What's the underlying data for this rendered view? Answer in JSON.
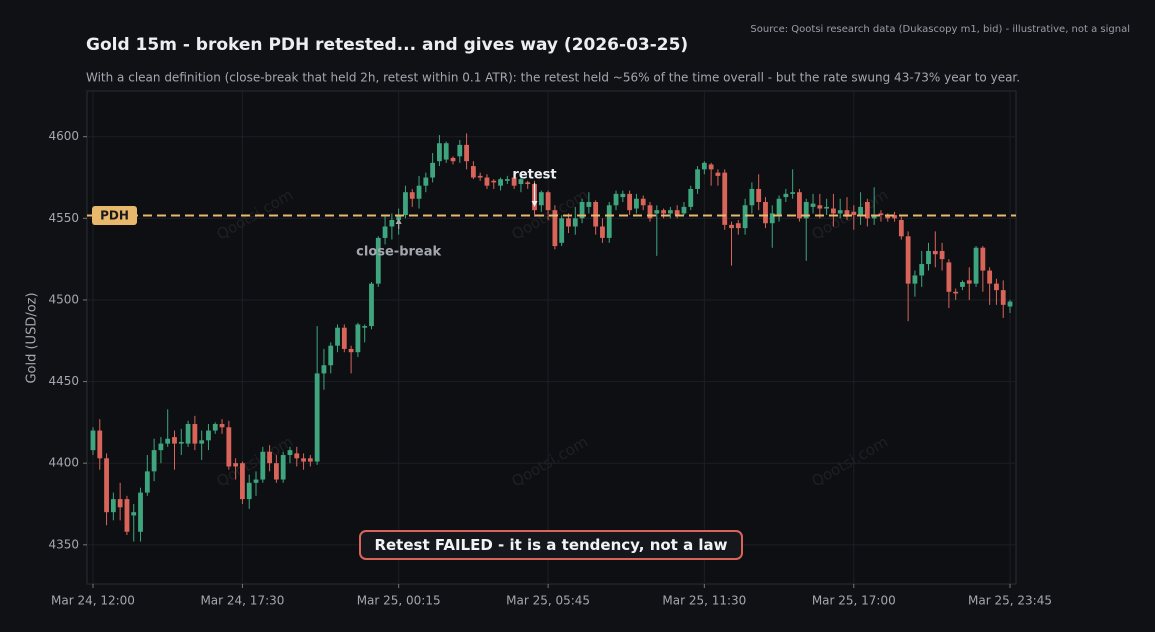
{
  "chart_data": {
    "type": "candlestick",
    "title": "Gold 15m - broken PDH retested... and gives way (2026-03-25)",
    "subtitle": "With a clean definition (close-break that held 2h, retest within 0.1 ATR): the retest held ~56% of the time overall - but the rate swung 43-73% year to year.",
    "source": "Source: Qootsi research data (Dukascopy m1, bid) - illustrative, not a signal",
    "ylabel": "Gold (USD/oz)",
    "watermark": "Qootsi.com",
    "annotations": [
      "close-break",
      "retest"
    ],
    "callout": "Retest FAILED - it is a tendency, not a law",
    "reference_line": {
      "value": 4551.7,
      "label": "PDH",
      "color": "#e8b86d"
    },
    "up_color": "#3fa57f",
    "down_color": "#d9645a",
    "grid": true,
    "ylim": [
      4326,
      4628
    ],
    "yticks": [
      4350,
      4400,
      4450,
      4500,
      4550,
      4600
    ],
    "xlim": [
      -0.88,
      135.88
    ],
    "categories": [
      "Mar 24, 12:00",
      null,
      null,
      null,
      null,
      null,
      null,
      null,
      null,
      null,
      null,
      null,
      null,
      null,
      null,
      null,
      null,
      null,
      null,
      null,
      null,
      null,
      "Mar 24, 17:30",
      null,
      null,
      null,
      null,
      null,
      null,
      null,
      null,
      null,
      null,
      null,
      null,
      null,
      null,
      null,
      null,
      null,
      null,
      null,
      null,
      null,
      null,
      "Mar 25, 00:15",
      null,
      null,
      null,
      null,
      null,
      null,
      null,
      null,
      null,
      null,
      null,
      null,
      null,
      null,
      null,
      null,
      null,
      null,
      null,
      null,
      null,
      "Mar 25, 05:45",
      null,
      null,
      null,
      null,
      null,
      null,
      null,
      null,
      null,
      null,
      null,
      null,
      null,
      null,
      null,
      null,
      null,
      null,
      null,
      null,
      null,
      null,
      "Mar 25, 11:30",
      null,
      null,
      null,
      null,
      null,
      null,
      null,
      null,
      null,
      null,
      null,
      null,
      null,
      null,
      null,
      null,
      null,
      null,
      null,
      null,
      null,
      "Mar 25, 17:00",
      null,
      null,
      null,
      null,
      null,
      null,
      null,
      null,
      null,
      null,
      null,
      null,
      null,
      null,
      null,
      null,
      null,
      null,
      null,
      null,
      null,
      null,
      "Mar 25, 23:45"
    ],
    "open": [
      4408,
      4420,
      4403,
      4370,
      4378,
      4378,
      4368,
      4358,
      4382,
      4395,
      4408,
      4412,
      4416,
      4412,
      4412,
      4424,
      4412,
      4414,
      4420,
      4424,
      4422,
      4400,
      4400,
      4378,
      4388,
      4390,
      4407,
      4400,
      4390,
      4405,
      4406,
      4403,
      4403,
      4401,
      4455,
      4460,
      4472,
      4483,
      4470,
      4468,
      4483,
      4484,
      4510,
      4538,
      4545,
      4549,
      4552,
      4566,
      4562,
      4570,
      4575,
      4585,
      4586,
      4587,
      4588,
      4595,
      4582,
      4576,
      4575,
      4573,
      4570,
      4573,
      4575,
      4571,
      4572,
      4571,
      4558,
      4566,
      4555,
      4535,
      4550,
      4545,
      4550,
      4557,
      4560,
      4545,
      4538,
      4558,
      4563,
      4565,
      4556,
      4562,
      4558,
      4553,
      4555,
      4553,
      4555,
      4553,
      4557,
      4568,
      4580,
      4583,
      4578,
      4578,
      4546,
      4547,
      4544,
      4558,
      4568,
      4560,
      4547,
      4552,
      4563,
      4565,
      4566,
      4550,
      4557,
      4558,
      4556,
      4556,
      4553,
      4555,
      4554,
      4552,
      4560,
      4550,
      4553,
      4552,
      4552,
      4549,
      4539,
      4510,
      4515,
      4522,
      4530,
      4530,
      4523,
      4505,
      4508,
      4512,
      4510,
      4532,
      4518,
      4510,
      4506,
      4496
    ],
    "high": [
      4422,
      4427,
      4406,
      4382,
      4388,
      4380,
      4375,
      4385,
      4405,
      4415,
      4416,
      4433,
      4420,
      4421,
      4426,
      4429,
      4420,
      4424,
      4425,
      4427,
      4426,
      4403,
      4401,
      4393,
      4395,
      4410,
      4411,
      4405,
      4407,
      4410,
      4410,
      4406,
      4405,
      4484,
      4470,
      4474,
      4485,
      4485,
      4472,
      4486,
      4485,
      4511,
      4539,
      4552,
      4553,
      4556,
      4570,
      4568,
      4576,
      4578,
      4590,
      4601,
      4597,
      4588,
      4598,
      4602,
      4585,
      4578,
      4577,
      4574,
      4575,
      4576,
      4577,
      4576,
      4573,
      4573,
      4567,
      4567,
      4558,
      4552,
      4553,
      4557,
      4562,
      4566,
      4561,
      4550,
      4560,
      4567,
      4567,
      4567,
      4565,
      4564,
      4560,
      4558,
      4556,
      4557,
      4558,
      4560,
      4570,
      4582,
      4585,
      4584,
      4580,
      4580,
      4548,
      4549,
      4562,
      4572,
      4577,
      4563,
      4558,
      4564,
      4568,
      4580,
      4568,
      4562,
      4565,
      4565,
      4562,
      4565,
      4562,
      4563,
      4558,
      4566,
      4562,
      4569,
      4555,
      4553,
      4554,
      4551,
      4542,
      4518,
      4530,
      4535,
      4542,
      4535,
      4525,
      4507,
      4512,
      4520,
      4533,
      4533,
      4520,
      4513,
      4512,
      4500
    ],
    "low": [
      4405,
      4396,
      4362,
      4365,
      4365,
      4356,
      4352,
      4352,
      4380,
      4389,
      4400,
      4410,
      4396,
      4405,
      4410,
      4408,
      4402,
      4408,
      4418,
      4418,
      4396,
      4390,
      4375,
      4372,
      4380,
      4388,
      4395,
      4388,
      4388,
      4400,
      4398,
      4396,
      4398,
      4399,
      4445,
      4455,
      4468,
      4468,
      4455,
      4465,
      4474,
      4482,
      4508,
      4534,
      4537,
      4540,
      4550,
      4557,
      4556,
      4566,
      4572,
      4582,
      4584,
      4583,
      4584,
      4580,
      4574,
      4573,
      4568,
      4568,
      4567,
      4571,
      4568,
      4566,
      4568,
      4551,
      4554,
      4549,
      4531,
      4533,
      4541,
      4540,
      4547,
      4553,
      4540,
      4535,
      4535,
      4555,
      4560,
      4552,
      4553,
      4555,
      4548,
      4527,
      4550,
      4550,
      4550,
      4552,
      4555,
      4565,
      4577,
      4570,
      4570,
      4543,
      4521,
      4540,
      4540,
      4553,
      4555,
      4544,
      4532,
      4548,
      4560,
      4562,
      4548,
      4524,
      4553,
      4550,
      4552,
      4545,
      4550,
      4549,
      4543,
      4546,
      4545,
      4546,
      4548,
      4548,
      4548,
      4537,
      4487,
      4502,
      4508,
      4518,
      4520,
      4518,
      4495,
      4500,
      4506,
      4500,
      4508,
      4505,
      4497,
      4497,
      4489,
      4492
    ],
    "close": [
      4420,
      4403,
      4370,
      4378,
      4373,
      4358,
      4370,
      4382,
      4395,
      4408,
      4412,
      4415,
      4412,
      4413,
      4424,
      4412,
      4414,
      4420,
      4424,
      4422,
      4398,
      4398,
      4378,
      4388,
      4390,
      4407,
      4400,
      4390,
      4405,
      4408,
      4403,
      4401,
      4401,
      4455,
      4460,
      4472,
      4483,
      4470,
      4468,
      4485,
      4484,
      4510,
      4538,
      4545,
      4549,
      4552,
      4566,
      4562,
      4570,
      4575,
      4584,
      4596,
      4596,
      4585,
      4595,
      4585,
      4575,
      4575,
      4570,
      4572,
      4574,
      4574,
      4570,
      4574,
      4571,
      4555,
      4566,
      4555,
      4533,
      4550,
      4545,
      4550,
      4560,
      4560,
      4545,
      4538,
      4558,
      4565,
      4565,
      4555,
      4562,
      4558,
      4550,
      4555,
      4553,
      4555,
      4552,
      4557,
      4568,
      4580,
      4584,
      4580,
      4576,
      4546,
      4544,
      4544,
      4558,
      4568,
      4560,
      4547,
      4553,
      4562,
      4565,
      4566,
      4550,
      4560,
      4559,
      4556,
      4557,
      4553,
      4555,
      4551,
      4552,
      4557,
      4550,
      4552,
      4552,
      4550,
      4550,
      4539,
      4510,
      4515,
      4522,
      4530,
      4528,
      4525,
      4505,
      4504,
      4511,
      4510,
      4532,
      4518,
      4510,
      4506,
      4497,
      4499
    ]
  }
}
